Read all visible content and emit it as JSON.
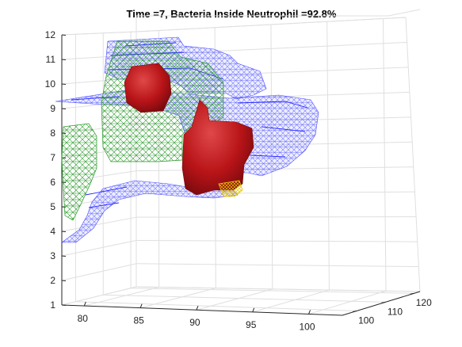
{
  "chart_data": {
    "type": "3d-mesh",
    "title": "Time =7, Bacteria Inside Neutrophil  =92.8%",
    "time": 7,
    "bacteria_inside_percent": 92.8,
    "x_ticks": [
      "80",
      "85",
      "90",
      "95",
      "100"
    ],
    "y_ticks": [
      "100",
      "110",
      "120"
    ],
    "z_ticks": [
      "1",
      "2",
      "3",
      "4",
      "5",
      "6",
      "7",
      "8",
      "9",
      "10",
      "11",
      "12"
    ],
    "xlim": [
      78,
      103
    ],
    "ylim": [
      95,
      122
    ],
    "zlim": [
      1,
      12
    ],
    "grid": true,
    "objects": [
      {
        "name": "neutrophil-membrane",
        "render": "wireframe",
        "color": "#3a3aff"
      },
      {
        "name": "cell-volume",
        "render": "wireframe",
        "color": "#2a8f2a"
      },
      {
        "name": "bacteria",
        "render": "solid",
        "color": "#c0141e"
      },
      {
        "name": "bacterium-highlight",
        "render": "wireframe",
        "color": "#e8c800"
      }
    ]
  }
}
